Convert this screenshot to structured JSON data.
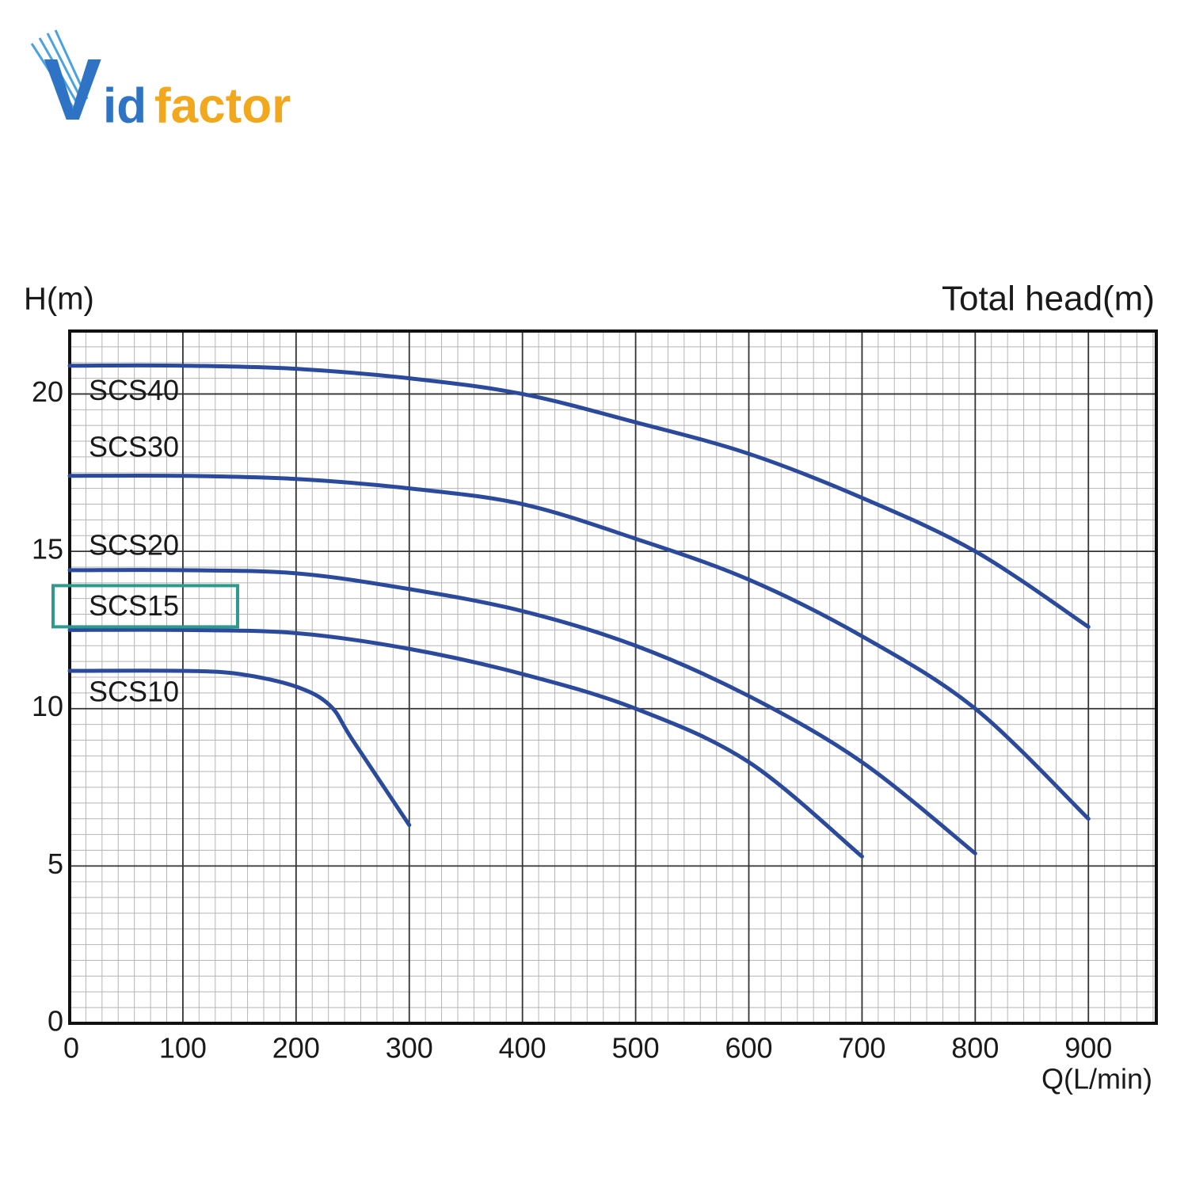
{
  "logo": [
    "V",
    "id",
    "factor"
  ],
  "chart_data": {
    "type": "line",
    "title": "Total head(m)",
    "y_label": "H(m)",
    "x_label": "Q(L/min)",
    "xlim": [
      0,
      960
    ],
    "ylim": [
      0,
      22
    ],
    "xticks": [
      0,
      100,
      200,
      300,
      400,
      500,
      600,
      700,
      800,
      900
    ],
    "yticks": [
      0,
      5,
      10,
      15,
      20
    ],
    "grid": true,
    "minor_grid": true,
    "series": [
      {
        "name": "SCS40",
        "color": "#2b4a9b",
        "x": [
          0,
          100,
          200,
          300,
          400,
          500,
          600,
          700,
          800,
          900
        ],
        "values": [
          20.9,
          20.9,
          20.8,
          20.5,
          20.0,
          19.1,
          18.1,
          16.7,
          15.0,
          12.6
        ]
      },
      {
        "name": "SCS30",
        "color": "#2b4a9b",
        "x": [
          0,
          100,
          200,
          300,
          400,
          500,
          600,
          700,
          800,
          900
        ],
        "values": [
          17.4,
          17.4,
          17.3,
          17.0,
          16.5,
          15.4,
          14.1,
          12.3,
          10.0,
          6.5
        ]
      },
      {
        "name": "SCS20",
        "color": "#2b4a9b",
        "x": [
          0,
          100,
          200,
          300,
          400,
          500,
          600,
          700,
          800
        ],
        "values": [
          14.4,
          14.4,
          14.3,
          13.8,
          13.1,
          12.0,
          10.4,
          8.3,
          5.4
        ]
      },
      {
        "name": "SCS15",
        "color": "#2b4a9b",
        "highlight": true,
        "x": [
          0,
          100,
          200,
          300,
          400,
          500,
          600,
          700
        ],
        "values": [
          12.5,
          12.5,
          12.4,
          11.9,
          11.1,
          10.0,
          8.3,
          5.3
        ]
      },
      {
        "name": "SCS10",
        "color": "#2b4a9b",
        "x": [
          0,
          100,
          150,
          200,
          230,
          250,
          300
        ],
        "values": [
          11.2,
          11.2,
          11.1,
          10.7,
          10.1,
          9.0,
          6.3
        ]
      }
    ]
  }
}
